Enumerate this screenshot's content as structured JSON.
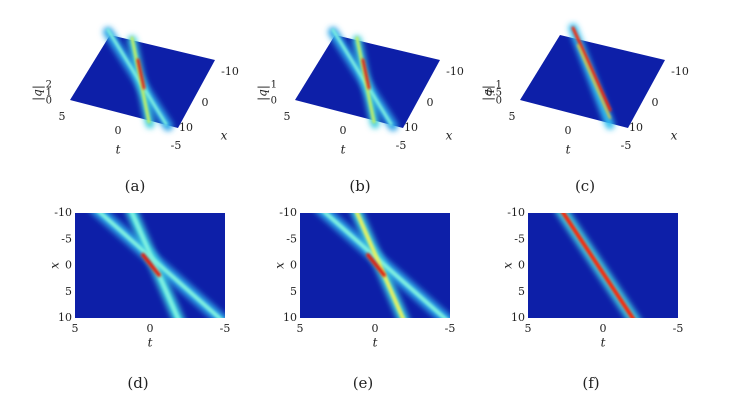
{
  "panels": [
    {
      "caption": "(a)",
      "z_label": "|q|",
      "z_ticks": [
        2,
        1,
        0
      ],
      "t_label": "t",
      "t_ticks": [
        5,
        0,
        -5
      ],
      "x_label": "x",
      "x_ticks": [
        -10,
        0,
        10
      ]
    },
    {
      "caption": "(b)",
      "z_label": "|q|",
      "z_ticks": [
        1,
        0
      ],
      "t_label": "t",
      "t_ticks": [
        5,
        0,
        -5
      ],
      "x_label": "x",
      "x_ticks": [
        -10,
        0,
        10
      ]
    },
    {
      "caption": "(c)",
      "z_label": "|q|",
      "z_ticks": [
        1,
        0.5,
        0
      ],
      "t_label": "t",
      "t_ticks": [
        5,
        0,
        -5
      ],
      "x_label": "x",
      "x_ticks": [
        -10,
        0,
        10
      ]
    },
    {
      "caption": "(d)",
      "y_label": "x",
      "y_ticks": [
        -10,
        -5,
        0,
        5,
        10
      ],
      "x_label": "t",
      "x_ticks": [
        5,
        0,
        -5
      ]
    },
    {
      "caption": "(e)",
      "y_label": "x",
      "y_ticks": [
        -10,
        -5,
        0,
        5,
        10
      ],
      "x_label": "t",
      "x_ticks": [
        5,
        0,
        -5
      ]
    },
    {
      "caption": "(f)",
      "y_label": "x",
      "y_ticks": [
        -10,
        -5,
        0,
        5,
        10
      ],
      "x_label": "t",
      "x_ticks": [
        5,
        0,
        -5
      ]
    }
  ]
}
